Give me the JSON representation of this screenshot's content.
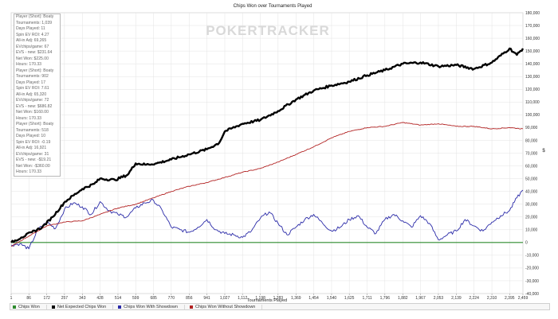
{
  "chart_data": {
    "type": "line",
    "title": "Chips Won over Tournaments Played",
    "watermark": "POKERTRACKER",
    "xlabel": "Tournaments Played",
    "ylabel": "$",
    "x_ticks": [
      "1",
      "86",
      "172",
      "257",
      "343",
      "428",
      "514",
      "599",
      "685",
      "770",
      "856",
      "941",
      "1,027",
      "1,112",
      "1,198",
      "1,283",
      "1,369",
      "1,454",
      "1,540",
      "1,625",
      "1,711",
      "1,796",
      "1,882",
      "1,967",
      "2,053",
      "2,139",
      "2,224",
      "2,310",
      "2,395",
      "2,459"
    ],
    "xlim": [
      1,
      2459
    ],
    "ylim": [
      -40000,
      180000
    ],
    "y_ticks": [
      -40000,
      -30000,
      -20000,
      -10000,
      0,
      10000,
      20000,
      30000,
      40000,
      50000,
      60000,
      70000,
      80000,
      90000,
      100000,
      110000,
      120000,
      130000,
      140000,
      150000,
      160000,
      170000,
      180000
    ],
    "y_tick_labels": [
      "-40,000",
      "-30,000",
      "-20,000",
      "-10,000",
      "0",
      "10,000",
      "20,000",
      "30,000",
      "40,000",
      "50,000",
      "60,000",
      "70,000",
      "80,000",
      "90,000",
      "100,000",
      "110,000",
      "120,000",
      "130,000",
      "140,000",
      "150,000",
      "160,000",
      "170,000",
      "180,000"
    ],
    "grid": true,
    "legend_position": "bottom",
    "series": [
      {
        "name": "Chips Won",
        "color": "#2e8b2e",
        "x": [
          1,
          2459
        ],
        "y": [
          0,
          0
        ]
      },
      {
        "name": "Net Expected Chips Won",
        "color": "#000000",
        "x": [
          1,
          50,
          100,
          150,
          200,
          260,
          343,
          400,
          428,
          500,
          560,
          599,
          650,
          700,
          770,
          856,
          941,
          1000,
          1027,
          1112,
          1198,
          1283,
          1369,
          1454,
          1540,
          1625,
          1711,
          1796,
          1882,
          1967,
          2053,
          2139,
          2224,
          2310,
          2395,
          2430,
          2459
        ],
        "y": [
          0,
          4000,
          8000,
          12000,
          20000,
          32000,
          42000,
          46000,
          50000,
          49000,
          53000,
          62000,
          61000,
          62000,
          65000,
          69000,
          73000,
          78000,
          87000,
          93000,
          96000,
          103000,
          112000,
          119000,
          123000,
          126000,
          131000,
          135000,
          140000,
          141000,
          138000,
          139000,
          136000,
          141000,
          152000,
          147000,
          152000
        ]
      },
      {
        "name": "Chips Won With Showdown",
        "color": "#2a2aa8",
        "x": [
          1,
          43,
          86,
          129,
          172,
          214,
          257,
          300,
          343,
          385,
          428,
          471,
          514,
          556,
          599,
          642,
          685,
          727,
          770,
          813,
          856,
          898,
          941,
          984,
          1027,
          1070,
          1112,
          1155,
          1198,
          1240,
          1283,
          1326,
          1369,
          1411,
          1454,
          1497,
          1540,
          1582,
          1625,
          1668,
          1711,
          1753,
          1796,
          1839,
          1882,
          1924,
          1967,
          2010,
          2053,
          2096,
          2139,
          2181,
          2224,
          2267,
          2310,
          2352,
          2395,
          2430,
          2459
        ],
        "y": [
          -2000,
          -1000,
          -5000,
          10000,
          16000,
          11000,
          26000,
          31000,
          28000,
          22000,
          32000,
          25000,
          22000,
          20000,
          27000,
          31000,
          33000,
          25000,
          12000,
          10000,
          8000,
          12000,
          18000,
          10000,
          7000,
          6000,
          4000,
          9000,
          19000,
          24000,
          15000,
          6000,
          12000,
          18000,
          22000,
          15000,
          9000,
          12000,
          18000,
          21000,
          12000,
          7000,
          18000,
          22000,
          17000,
          12000,
          21000,
          15000,
          2000,
          6000,
          9000,
          18000,
          13000,
          9000,
          16000,
          21000,
          25000,
          35000,
          41000
        ]
      },
      {
        "name": "Chips Won Without Showdown",
        "color": "#b22222",
        "x": [
          1,
          86,
          172,
          257,
          343,
          428,
          514,
          599,
          685,
          770,
          856,
          941,
          1027,
          1112,
          1198,
          1283,
          1369,
          1454,
          1540,
          1625,
          1711,
          1796,
          1882,
          1967,
          2053,
          2139,
          2224,
          2310,
          2395,
          2459
        ],
        "y": [
          -3000,
          5000,
          13000,
          16000,
          17000,
          22000,
          27000,
          30000,
          35000,
          40000,
          44000,
          47000,
          51000,
          55000,
          58000,
          63000,
          69000,
          75000,
          82000,
          87000,
          90000,
          91000,
          94000,
          92000,
          93000,
          91000,
          91000,
          89000,
          90000,
          89000
        ]
      }
    ]
  },
  "stats_panel": [
    "Player (Short): Boaty",
    "Tournaments: 1,039",
    "Days Played: 11",
    "Spin EV ROI: 4.27",
    "All-in Adj: 69,265",
    "EVchips/game: 67",
    "EVS - new: $231.64",
    "Net Won: $225.00",
    "Hours: 170.33",
    "Player (Short): Boaty",
    "Tournaments: 902",
    "Days Played: 17",
    "Spin EV ROI: 7.61",
    "All-in Adj: 65,320",
    "EVchips/game: 72",
    "EVS - new: $686.82",
    "Net Won: $160.00",
    "Hours: 170.33",
    "Player (Short): Boaty",
    "Tournaments: 518",
    "Days Played: 10",
    "Spin EV ROI: -0.19",
    "All-in Adj: 16,921",
    "EVchips/game: 31",
    "EVS - new: -$19.21",
    "Net Won: -$360.00",
    "Hours: 170.33"
  ]
}
